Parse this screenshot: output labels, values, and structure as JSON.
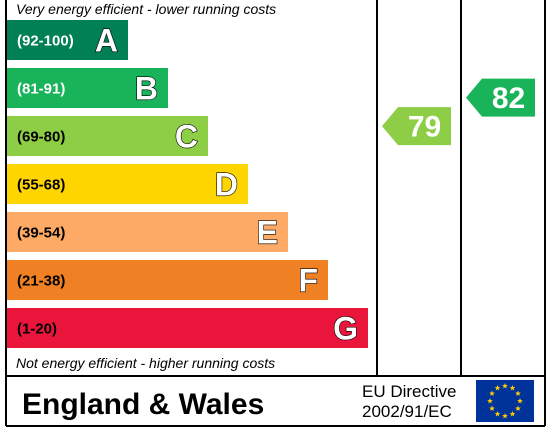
{
  "chart_data": {
    "type": "bar",
    "top_note": "Very energy efficient - lower running costs",
    "bottom_note": "Not energy efficient - higher running costs",
    "bands": [
      {
        "range": "(92-100)",
        "letter": "A",
        "min": 92,
        "max": 100,
        "color": "#008054",
        "range_color": "#ffffff"
      },
      {
        "range": "(81-91)",
        "letter": "B",
        "min": 81,
        "max": 91,
        "color": "#19b459",
        "range_color": "#ffffff"
      },
      {
        "range": "(69-80)",
        "letter": "C",
        "min": 69,
        "max": 80,
        "color": "#8dce46",
        "range_color": "#000000"
      },
      {
        "range": "(55-68)",
        "letter": "D",
        "min": 55,
        "max": 68,
        "color": "#ffd500",
        "range_color": "#000000"
      },
      {
        "range": "(39-54)",
        "letter": "E",
        "min": 39,
        "max": 54,
        "color": "#fcaa65",
        "range_color": "#000000"
      },
      {
        "range": "(21-38)",
        "letter": "F",
        "min": 21,
        "max": 38,
        "color": "#ef8023",
        "range_color": "#000000"
      },
      {
        "range": "(1-20)",
        "letter": "G",
        "min": 1,
        "max": 20,
        "color": "#e9153b",
        "range_color": "#000000"
      }
    ],
    "current": {
      "value": 79,
      "band": "C",
      "color": "#8dce46"
    },
    "potential": {
      "value": 82,
      "band": "B",
      "color": "#19b459"
    }
  },
  "footer": {
    "region": "England & Wales",
    "directive_line1": "EU Directive",
    "directive_line2": "2002/91/EC",
    "flag_color": "#003399",
    "star_color": "#ffcc00"
  }
}
